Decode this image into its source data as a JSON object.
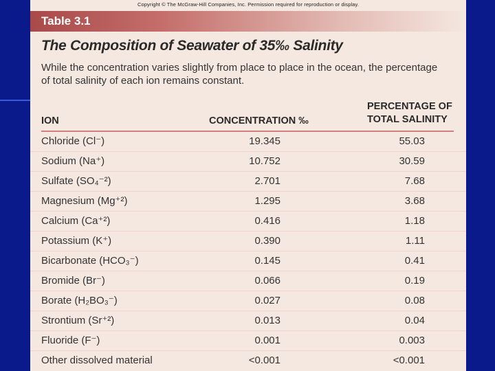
{
  "header": {
    "copyright": "Copyright © The McGraw-Hill Companies, Inc. Permission required for reproduction or display.",
    "table_label": "Table 3.1"
  },
  "title": "The Composition of Seawater of 35‰ Salinity",
  "description": "While the concentration varies slightly from place to place in the ocean, the percentage of total salinity of each ion remains constant.",
  "table": {
    "columns": {
      "ion": "ION",
      "concentration": "CONCENTRATION ‰",
      "percentage_line1": "PERCENTAGE OF",
      "percentage_line2": "TOTAL SALINITY"
    },
    "rows": [
      {
        "ion": "Chloride (Cl⁻)",
        "concentration": "19.345",
        "percentage": "55.03"
      },
      {
        "ion": "Sodium (Na⁺)",
        "concentration": "10.752",
        "percentage": "30.59"
      },
      {
        "ion": "Sulfate (SO₄⁻²)",
        "concentration": "2.701",
        "percentage": "7.68"
      },
      {
        "ion": "Magnesium (Mg⁺²)",
        "concentration": "1.295",
        "percentage": "3.68"
      },
      {
        "ion": "Calcium (Ca⁺²)",
        "concentration": "0.416",
        "percentage": "1.18"
      },
      {
        "ion": "Potassium (K⁺)",
        "concentration": "0.390",
        "percentage": "1.11"
      },
      {
        "ion": "Bicarbonate (HCO₃⁻)",
        "concentration": "0.145",
        "percentage": "0.41"
      },
      {
        "ion": "Bromide (Br⁻)",
        "concentration": "0.066",
        "percentage": "0.19"
      },
      {
        "ion": "Borate (H₂BO₃⁻)",
        "concentration": "0.027",
        "percentage": "0.08"
      },
      {
        "ion": "Strontium (Sr⁺²)",
        "concentration": "0.013",
        "percentage": "0.04"
      },
      {
        "ion": "Fluoride (F⁻)",
        "concentration": "0.001",
        "percentage": "0.003"
      },
      {
        "ion": "Other dissolved material",
        "concentration": "<0.001",
        "percentage": "<0.001"
      }
    ]
  },
  "colors": {
    "background": "#0a1a8a",
    "slide": "#f4e8e0",
    "banner": "#a84a4a",
    "rule": "#d18080"
  }
}
